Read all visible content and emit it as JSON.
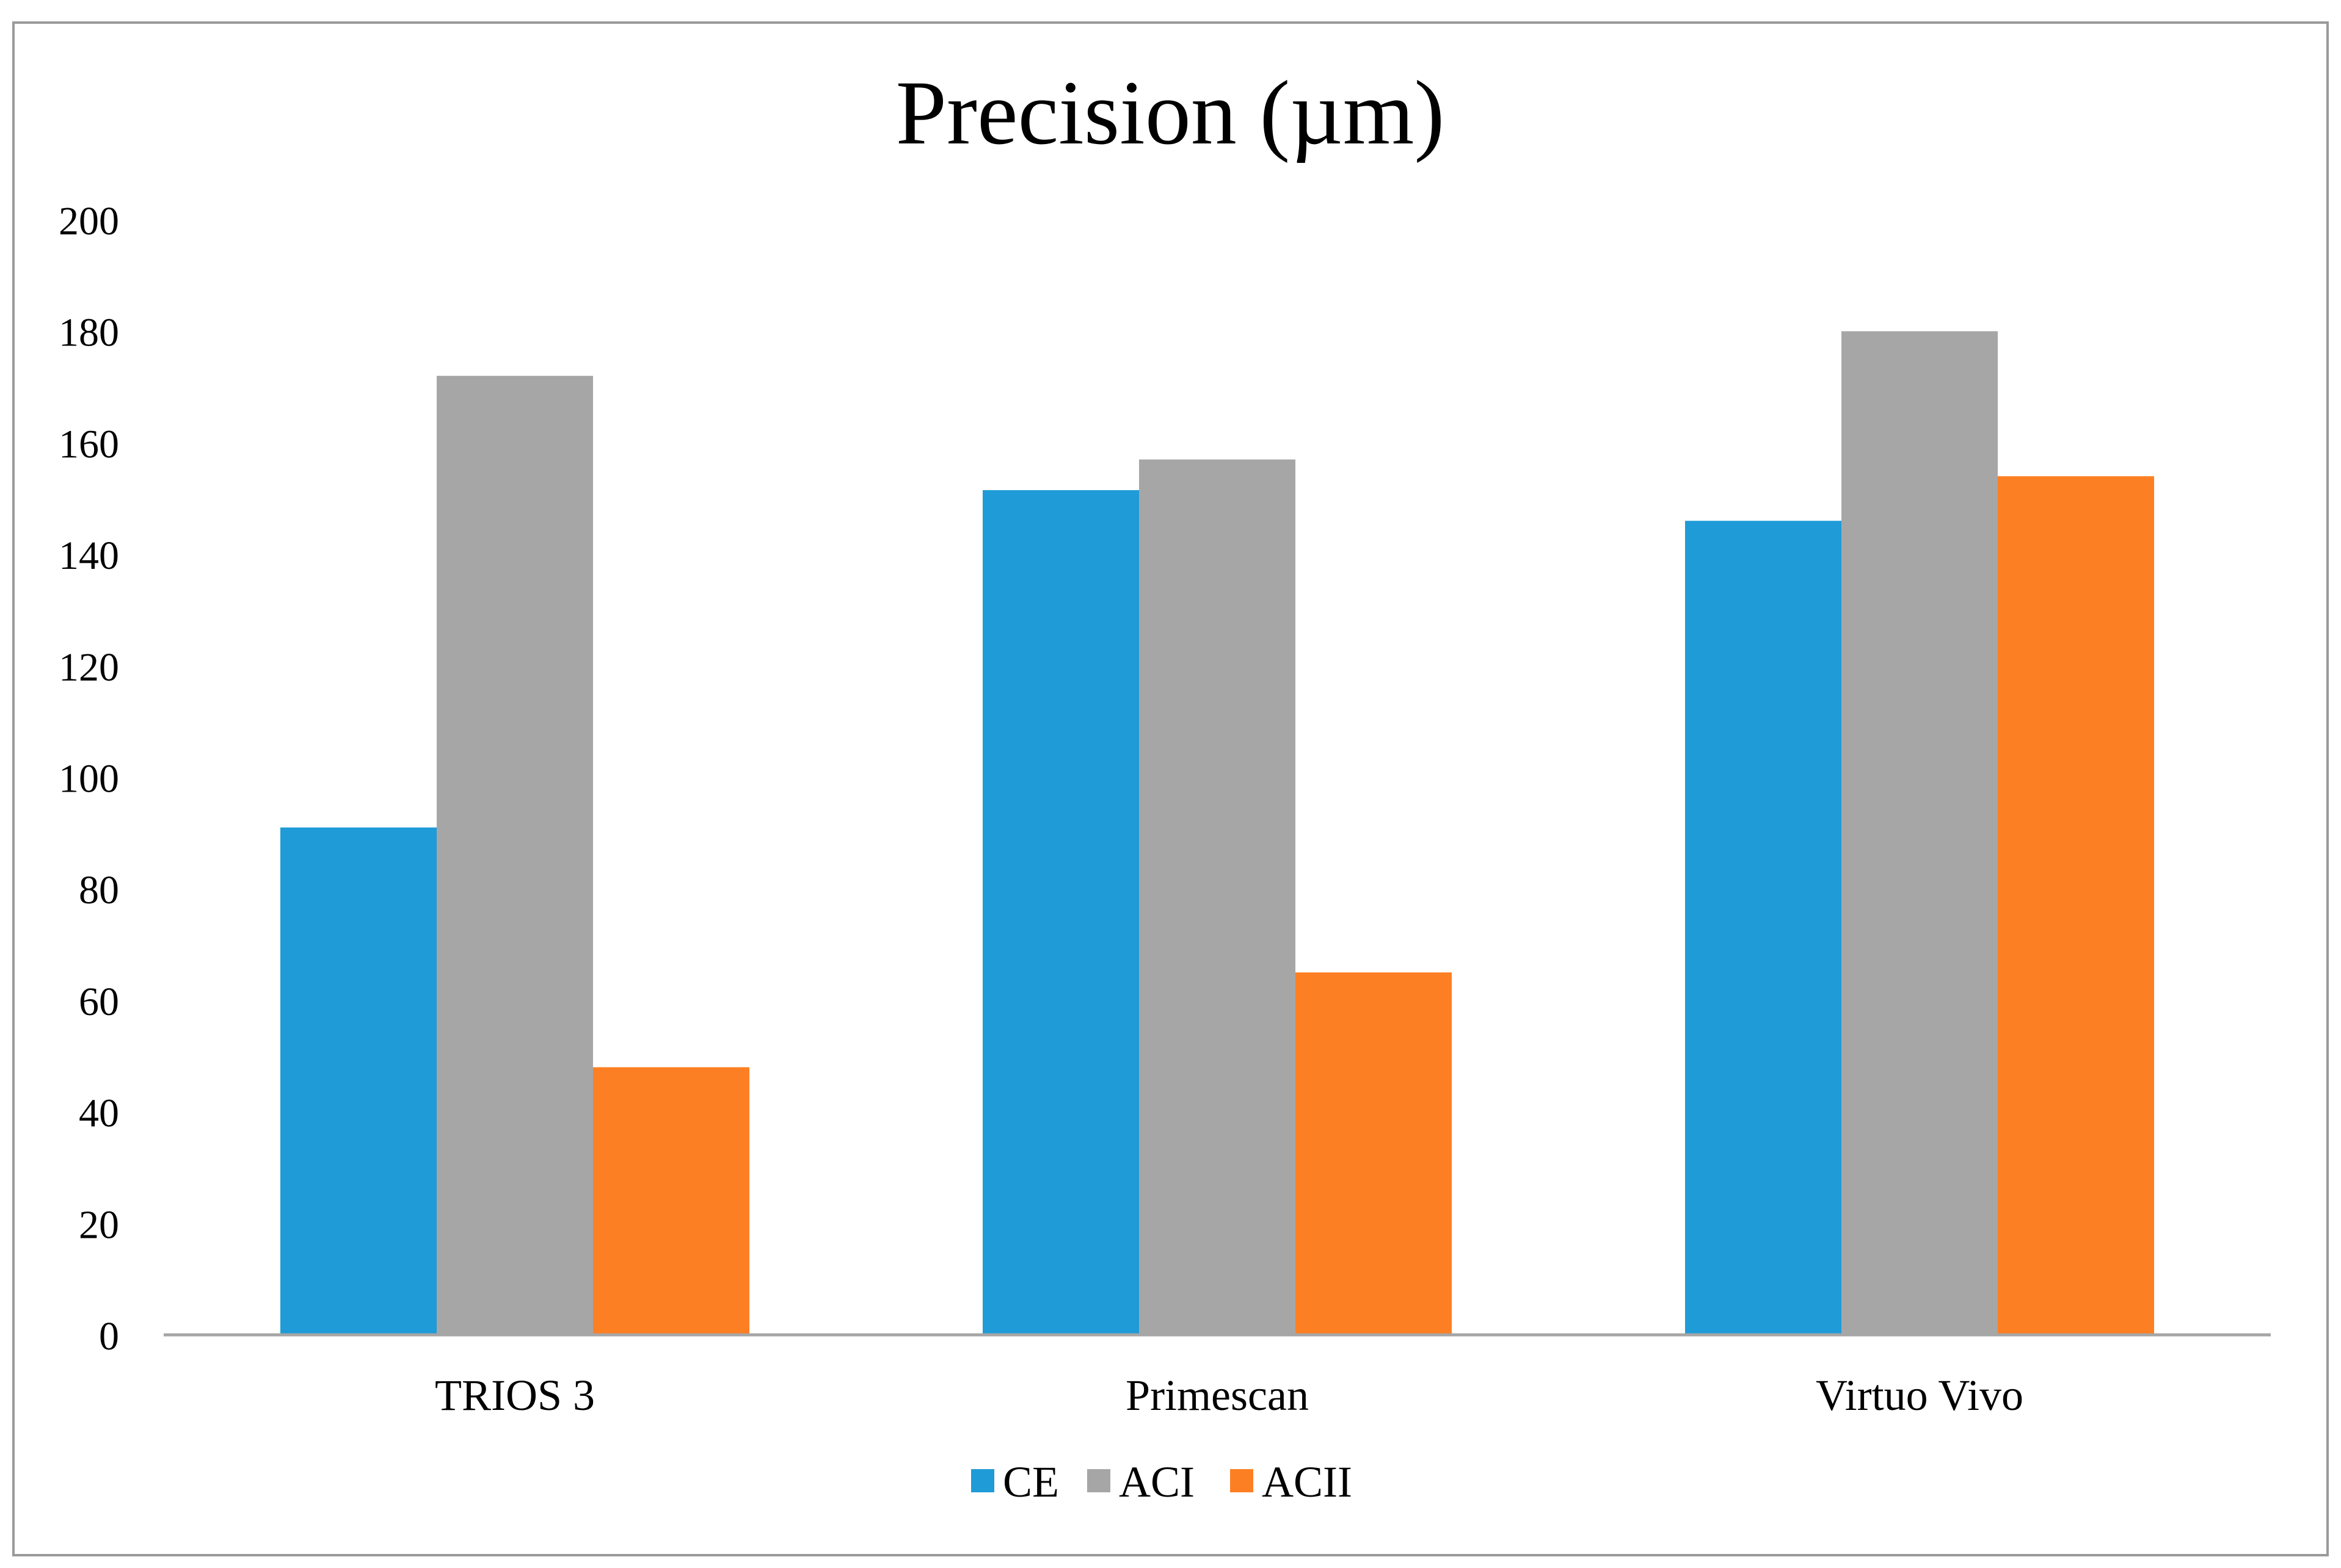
{
  "chart_data": {
    "type": "bar",
    "title": "Precision (µm)",
    "xlabel": "",
    "ylabel": "",
    "ylim": [
      0,
      200
    ],
    "yticks": [
      0,
      20,
      40,
      60,
      80,
      100,
      120,
      140,
      160,
      180,
      200
    ],
    "grid": false,
    "legend_position": "bottom",
    "categories": [
      "TRIOS 3",
      "Primescan",
      "Virtuo Vivo"
    ],
    "series": [
      {
        "name": "CE",
        "color": "#1f9bd7",
        "values": [
          91,
          151.5,
          146
        ]
      },
      {
        "name": "ACI",
        "color": "#a6a6a6",
        "values": [
          172,
          157,
          180
        ]
      },
      {
        "name": "ACII",
        "color": "#fd7f23",
        "values": [
          48,
          65,
          154
        ]
      }
    ]
  }
}
